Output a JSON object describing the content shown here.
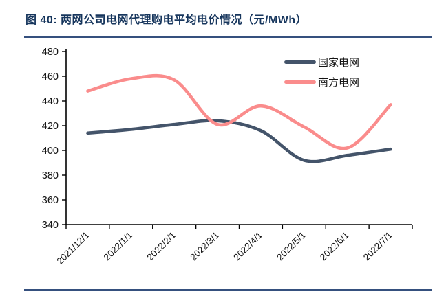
{
  "figure": {
    "title": "图 40:  两网公司电网代理购电平均电价情况（元/MWh）"
  },
  "chart_data": {
    "type": "line",
    "smooth": true,
    "grid": false,
    "legend_position": "top-right",
    "categories": [
      "2021/12/1",
      "2022/1/1",
      "2022/2/1",
      "2022/3/1",
      "2022/4/1",
      "2022/5/1",
      "2022/6/1",
      "2022/7/1"
    ],
    "series": [
      {
        "name": "国家电网",
        "color": "#44546a",
        "values": [
          414,
          417,
          421,
          424,
          416,
          392,
          396,
          401
        ]
      },
      {
        "name": "南方电网",
        "color": "#fa8c8c",
        "values": [
          448,
          458,
          457,
          421,
          436,
          419,
          402,
          437
        ]
      }
    ],
    "ylabel": "",
    "xlabel": "",
    "ylim": [
      340,
      480
    ],
    "ytick_step": 20,
    "yticks": [
      340,
      360,
      380,
      400,
      420,
      440,
      460,
      480
    ]
  },
  "colors": {
    "title": "#17365d",
    "rule": "#35507e",
    "axis": "#000000",
    "tick_label": "#141414"
  }
}
